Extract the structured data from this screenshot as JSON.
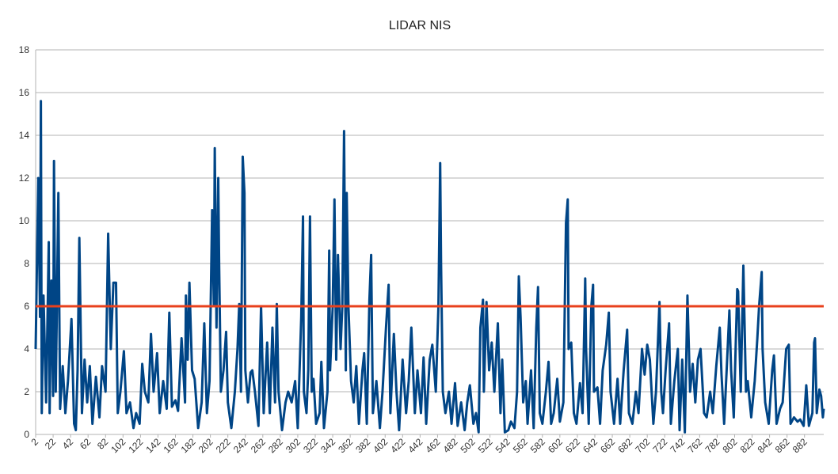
{
  "chart_data": {
    "type": "line",
    "title": "LIDAR NIS",
    "x": [
      2,
      5,
      7,
      8,
      9,
      11,
      14,
      17,
      18,
      20,
      22,
      23,
      25,
      26,
      28,
      30,
      33,
      36,
      39,
      43,
      46,
      48,
      50,
      52,
      55,
      58,
      61,
      64,
      67,
      71,
      75,
      78,
      82,
      85,
      88,
      91,
      94,
      96,
      99,
      103,
      106,
      110,
      114,
      117,
      121,
      124,
      127,
      131,
      134,
      137,
      141,
      144,
      148,
      152,
      155,
      158,
      162,
      165,
      169,
      173,
      174,
      176,
      178,
      181,
      184,
      188,
      192,
      195,
      198,
      201,
      204,
      206,
      207,
      209,
      211,
      212,
      214,
      217,
      220,
      222,
      226,
      230,
      233,
      235,
      237,
      239,
      241,
      242,
      245,
      248,
      250,
      253,
      257,
      260,
      263,
      267,
      270,
      273,
      276,
      278,
      280,
      284,
      288,
      291,
      295,
      299,
      302,
      306,
      308,
      309,
      312,
      314,
      316,
      318,
      320,
      323,
      327,
      329,
      332,
      336,
      338,
      339,
      342,
      344,
      346,
      348,
      351,
      353,
      355,
      357,
      358,
      360,
      363,
      366,
      369,
      372,
      376,
      378,
      381,
      384,
      386,
      388,
      392,
      396,
      399,
      403,
      406,
      408,
      412,
      415,
      418,
      422,
      426,
      429,
      432,
      436,
      439,
      443,
      446,
      449,
      453,
      456,
      460,
      463,
      465,
      466,
      468,
      471,
      475,
      478,
      482,
      485,
      489,
      493,
      496,
      499,
      503,
      506,
      509,
      511,
      514,
      515,
      518,
      521,
      524,
      527,
      531,
      534,
      536,
      539,
      543,
      546,
      550,
      553,
      555,
      557,
      560,
      563,
      565,
      569,
      572,
      575,
      577,
      579,
      582,
      586,
      589,
      592,
      595,
      599,
      602,
      606,
      609,
      611,
      612,
      615,
      618,
      621,
      625,
      628,
      631,
      632,
      635,
      638,
      640,
      641,
      645,
      648,
      651,
      655,
      658,
      660,
      664,
      668,
      671,
      675,
      679,
      681,
      685,
      689,
      692,
      696,
      699,
      702,
      705,
      709,
      712,
      716,
      718,
      720,
      723,
      727,
      729,
      733,
      737,
      739,
      742,
      745,
      748,
      751,
      754,
      757,
      760,
      763,
      767,
      770,
      774,
      777,
      781,
      785,
      787,
      790,
      794,
      796,
      798,
      801,
      805,
      806,
      809,
      812,
      815,
      817,
      821,
      825,
      828,
      830,
      833,
      834,
      837,
      841,
      845,
      847,
      850,
      854,
      857,
      861,
      864,
      866,
      870,
      874,
      877,
      881,
      884,
      887,
      891,
      893,
      894,
      896,
      899,
      901,
      903,
      904
    ],
    "series": [
      {
        "name": "NIS",
        "color": "#004586",
        "values": [
          4,
          12,
          5.5,
          15.6,
          1,
          6.5,
          1.5,
          9,
          1,
          7.2,
          1.8,
          12.8,
          2,
          5,
          11.3,
          1.2,
          3.2,
          1,
          2.5,
          5.4,
          0.5,
          0.2,
          3,
          9.2,
          1,
          3.5,
          1.5,
          3.2,
          0.5,
          2.7,
          0.8,
          3.2,
          2,
          9.4,
          4,
          7.1,
          7.1,
          1,
          2,
          3.9,
          1,
          1.5,
          0.3,
          1,
          0.5,
          3.3,
          2,
          1.5,
          4.7,
          2,
          3.8,
          1,
          2.5,
          1.2,
          5.7,
          1.3,
          1.6,
          1.1,
          4.5,
          1.5,
          6.5,
          3.5,
          7.1,
          3,
          2.6,
          0.3,
          1.5,
          5.2,
          1,
          2.5,
          10.5,
          6,
          13.4,
          5,
          12,
          8,
          2,
          3,
          4.8,
          1.5,
          0.3,
          2,
          4,
          6.1,
          2,
          13,
          11.3,
          3,
          1.5,
          2.9,
          3,
          2,
          0.4,
          6,
          1,
          4.3,
          1,
          5,
          1.5,
          6.1,
          2,
          0.2,
          1.5,
          2,
          1.5,
          2.5,
          0.3,
          5.5,
          10.2,
          2,
          1,
          3,
          10.2,
          2,
          2.6,
          0.5,
          1,
          3.4,
          0.3,
          2,
          8.6,
          3,
          6,
          11,
          3.5,
          8.4,
          4,
          6,
          14.2,
          3,
          11.3,
          6,
          2.5,
          1.5,
          3.2,
          0.5,
          3,
          3.8,
          0.5,
          6.3,
          8.4,
          1,
          2.5,
          0.3,
          2,
          5,
          7,
          1,
          4.7,
          2,
          0.2,
          3.5,
          1,
          2.5,
          5,
          1,
          3,
          1,
          3.6,
          0.5,
          3.5,
          4.2,
          2,
          6,
          12.7,
          8,
          2,
          1,
          2,
          0.5,
          2.4,
          0.4,
          1.5,
          0.2,
          1.5,
          2.3,
          0.5,
          1,
          0.1,
          5,
          6.3,
          2,
          6.2,
          3,
          4.3,
          2,
          5.2,
          1,
          3.5,
          0.1,
          0.2,
          0.6,
          0.3,
          2,
          7.4,
          5.5,
          1.5,
          2.5,
          0.5,
          3,
          0.3,
          5,
          6.9,
          1,
          0.5,
          2,
          3.4,
          0.5,
          1,
          2.6,
          0.6,
          1.5,
          9.9,
          11,
          4,
          4.3,
          1,
          0.5,
          2.4,
          1,
          7.3,
          4,
          0.5,
          6,
          7,
          2,
          2.2,
          0.5,
          3,
          4.2,
          5.7,
          2,
          0.5,
          2.6,
          0.5,
          3,
          4.9,
          1,
          0.5,
          2,
          1,
          4,
          2.8,
          4.2,
          3.5,
          0.5,
          2,
          6.2,
          2,
          1,
          3,
          5.2,
          0.5,
          2.5,
          4,
          0.2,
          3.5,
          0.1,
          6.5,
          2,
          3.3,
          1.5,
          3.5,
          4,
          1,
          0.8,
          2,
          1,
          3.2,
          5,
          2.8,
          0.5,
          4,
          5.8,
          3,
          0.8,
          6.8,
          6.7,
          2,
          7.9,
          2,
          2.5,
          0.8,
          2.5,
          4.5,
          6,
          7.6,
          4,
          1.5,
          0.5,
          3,
          3.7,
          0.5,
          1.2,
          1.5,
          4,
          4.2,
          0.5,
          0.8,
          0.6,
          0.7,
          0.4,
          2.3,
          0.4,
          1,
          4.3,
          4.5,
          1,
          2.1,
          1.8,
          0.8,
          1.2
        ]
      }
    ],
    "reference_line": {
      "value": 6,
      "color": "#e8401c"
    },
    "xlim": [
      2,
      904
    ],
    "xticks": [
      2,
      22,
      42,
      62,
      82,
      102,
      122,
      142,
      162,
      182,
      202,
      222,
      242,
      262,
      282,
      302,
      322,
      342,
      362,
      382,
      402,
      422,
      442,
      462,
      482,
      502,
      522,
      542,
      562,
      582,
      602,
      622,
      642,
      662,
      682,
      702,
      722,
      742,
      762,
      782,
      802,
      822,
      842,
      862,
      882
    ],
    "ylim": [
      0,
      18
    ],
    "yticks": [
      0,
      2,
      4,
      6,
      8,
      10,
      12,
      14,
      16,
      18
    ],
    "grid": true
  }
}
